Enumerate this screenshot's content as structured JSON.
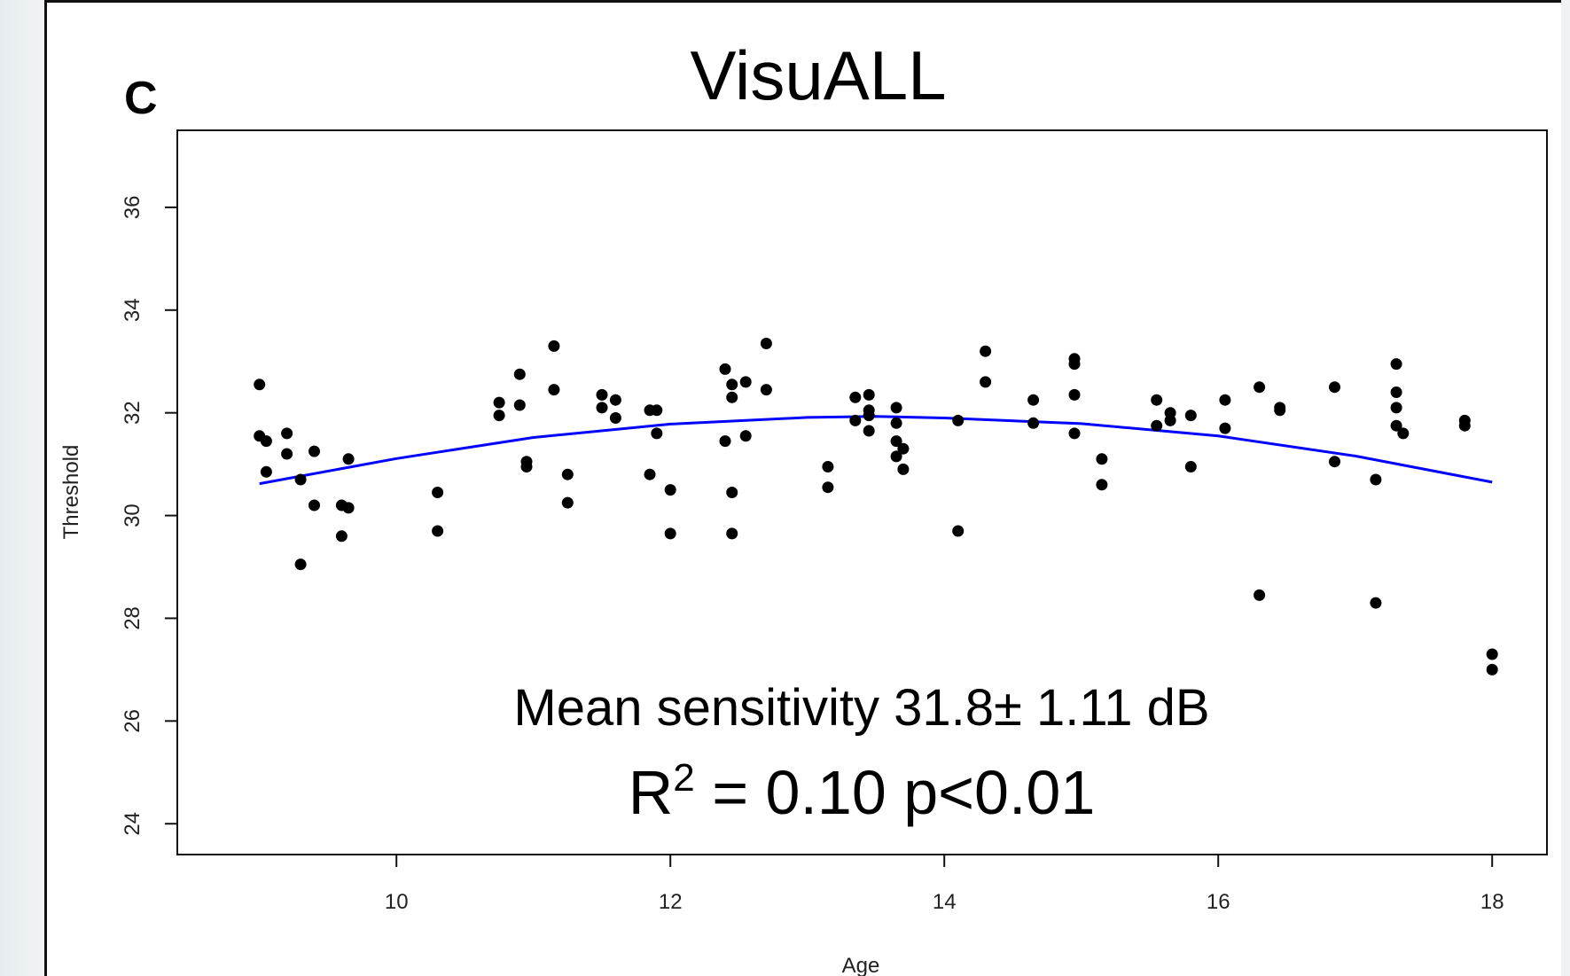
{
  "panel_label": "C",
  "chart_data": {
    "type": "scatter",
    "title": "VisuALL",
    "xlabel": "Age",
    "ylabel": "Threshold",
    "xlim": [
      8.4,
      18.4
    ],
    "ylim": [
      23.4,
      37.5
    ],
    "x_ticks": [
      10,
      12,
      14,
      16,
      18
    ],
    "y_ticks": [
      24,
      26,
      28,
      30,
      32,
      34,
      36
    ],
    "grid": false,
    "point_color": "#000000",
    "fit_color": "#0000ff",
    "annotations": [
      "Mean sensitivity 31.8± 1.11 dB",
      "R",
      "2",
      " = 0.10 p<0.01"
    ],
    "points": [
      {
        "x": 9.0,
        "y": 32.55
      },
      {
        "x": 9.0,
        "y": 31.55
      },
      {
        "x": 9.05,
        "y": 31.45
      },
      {
        "x": 9.05,
        "y": 30.85
      },
      {
        "x": 9.2,
        "y": 31.6
      },
      {
        "x": 9.2,
        "y": 31.2
      },
      {
        "x": 9.3,
        "y": 30.7
      },
      {
        "x": 9.3,
        "y": 29.05
      },
      {
        "x": 9.4,
        "y": 31.25
      },
      {
        "x": 9.4,
        "y": 30.2
      },
      {
        "x": 9.6,
        "y": 30.2
      },
      {
        "x": 9.6,
        "y": 29.6
      },
      {
        "x": 9.65,
        "y": 31.1
      },
      {
        "x": 9.65,
        "y": 30.15
      },
      {
        "x": 10.3,
        "y": 30.45
      },
      {
        "x": 10.3,
        "y": 29.7
      },
      {
        "x": 10.75,
        "y": 32.2
      },
      {
        "x": 10.75,
        "y": 31.95
      },
      {
        "x": 10.9,
        "y": 32.75
      },
      {
        "x": 10.9,
        "y": 32.15
      },
      {
        "x": 10.95,
        "y": 31.05
      },
      {
        "x": 10.95,
        "y": 30.95
      },
      {
        "x": 11.15,
        "y": 33.3
      },
      {
        "x": 11.15,
        "y": 32.45
      },
      {
        "x": 11.25,
        "y": 30.8
      },
      {
        "x": 11.25,
        "y": 30.25
      },
      {
        "x": 11.5,
        "y": 32.35
      },
      {
        "x": 11.5,
        "y": 32.1
      },
      {
        "x": 11.6,
        "y": 32.25
      },
      {
        "x": 11.6,
        "y": 31.9
      },
      {
        "x": 11.85,
        "y": 32.05
      },
      {
        "x": 11.85,
        "y": 30.8
      },
      {
        "x": 11.9,
        "y": 32.05
      },
      {
        "x": 11.9,
        "y": 31.6
      },
      {
        "x": 12.0,
        "y": 30.5
      },
      {
        "x": 12.0,
        "y": 29.65
      },
      {
        "x": 12.4,
        "y": 32.85
      },
      {
        "x": 12.4,
        "y": 31.45
      },
      {
        "x": 12.45,
        "y": 32.55
      },
      {
        "x": 12.45,
        "y": 32.3
      },
      {
        "x": 12.45,
        "y": 30.45
      },
      {
        "x": 12.45,
        "y": 29.65
      },
      {
        "x": 12.55,
        "y": 32.6
      },
      {
        "x": 12.55,
        "y": 31.55
      },
      {
        "x": 12.7,
        "y": 33.35
      },
      {
        "x": 12.7,
        "y": 32.45
      },
      {
        "x": 13.15,
        "y": 30.95
      },
      {
        "x": 13.15,
        "y": 30.55
      },
      {
        "x": 13.35,
        "y": 32.3
      },
      {
        "x": 13.35,
        "y": 31.85
      },
      {
        "x": 13.45,
        "y": 32.35
      },
      {
        "x": 13.45,
        "y": 32.05
      },
      {
        "x": 13.45,
        "y": 31.95
      },
      {
        "x": 13.45,
        "y": 31.65
      },
      {
        "x": 13.65,
        "y": 32.1
      },
      {
        "x": 13.65,
        "y": 31.8
      },
      {
        "x": 13.65,
        "y": 31.45
      },
      {
        "x": 13.65,
        "y": 31.15
      },
      {
        "x": 13.7,
        "y": 31.3
      },
      {
        "x": 13.7,
        "y": 30.9
      },
      {
        "x": 14.1,
        "y": 31.85
      },
      {
        "x": 14.1,
        "y": 29.7
      },
      {
        "x": 14.3,
        "y": 33.2
      },
      {
        "x": 14.3,
        "y": 32.6
      },
      {
        "x": 14.65,
        "y": 32.25
      },
      {
        "x": 14.65,
        "y": 31.8
      },
      {
        "x": 14.95,
        "y": 33.05
      },
      {
        "x": 14.95,
        "y": 32.95
      },
      {
        "x": 14.95,
        "y": 32.35
      },
      {
        "x": 14.95,
        "y": 31.6
      },
      {
        "x": 15.15,
        "y": 31.1
      },
      {
        "x": 15.15,
        "y": 30.6
      },
      {
        "x": 15.55,
        "y": 32.25
      },
      {
        "x": 15.55,
        "y": 31.75
      },
      {
        "x": 15.65,
        "y": 32.0
      },
      {
        "x": 15.65,
        "y": 31.85
      },
      {
        "x": 15.8,
        "y": 31.95
      },
      {
        "x": 15.8,
        "y": 30.95
      },
      {
        "x": 16.05,
        "y": 32.25
      },
      {
        "x": 16.05,
        "y": 31.7
      },
      {
        "x": 16.3,
        "y": 32.5
      },
      {
        "x": 16.3,
        "y": 28.45
      },
      {
        "x": 16.45,
        "y": 32.1
      },
      {
        "x": 16.45,
        "y": 32.05
      },
      {
        "x": 16.85,
        "y": 32.5
      },
      {
        "x": 16.85,
        "y": 31.05
      },
      {
        "x": 17.15,
        "y": 30.7
      },
      {
        "x": 17.15,
        "y": 28.3
      },
      {
        "x": 17.3,
        "y": 32.95
      },
      {
        "x": 17.3,
        "y": 32.4
      },
      {
        "x": 17.3,
        "y": 32.1
      },
      {
        "x": 17.3,
        "y": 31.75
      },
      {
        "x": 17.35,
        "y": 31.6
      },
      {
        "x": 17.8,
        "y": 31.85
      },
      {
        "x": 17.8,
        "y": 31.75
      },
      {
        "x": 18.0,
        "y": 27.3
      },
      {
        "x": 18.0,
        "y": 27.0
      }
    ],
    "fit_curve": [
      {
        "x": 9.0,
        "y": 30.62
      },
      {
        "x": 10.0,
        "y": 31.11
      },
      {
        "x": 11.0,
        "y": 31.52
      },
      {
        "x": 12.0,
        "y": 31.78
      },
      {
        "x": 13.0,
        "y": 31.91
      },
      {
        "x": 13.5,
        "y": 31.93
      },
      {
        "x": 14.0,
        "y": 31.9
      },
      {
        "x": 15.0,
        "y": 31.79
      },
      {
        "x": 16.0,
        "y": 31.55
      },
      {
        "x": 17.0,
        "y": 31.16
      },
      {
        "x": 18.0,
        "y": 30.65
      }
    ]
  }
}
